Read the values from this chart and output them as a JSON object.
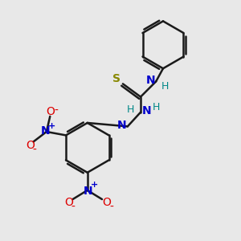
{
  "bg_color": "#e8e8e8",
  "bond_color": "#1a1a1a",
  "N_color": "#0000cc",
  "O_color": "#dd0000",
  "S_color": "#888800",
  "H_color": "#008888",
  "line_width": 1.8,
  "figsize": [
    3.0,
    3.0
  ],
  "dpi": 100,
  "xlim": [
    0,
    10
  ],
  "ylim": [
    0,
    10
  ]
}
